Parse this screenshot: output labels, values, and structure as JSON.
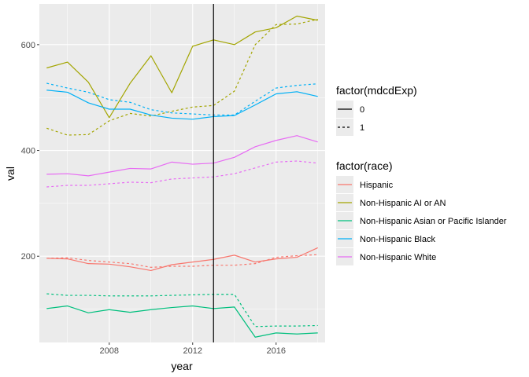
{
  "chart_data": {
    "type": "line",
    "xlabel": "year",
    "ylabel": "val",
    "xlim": [
      2004.65,
      2018.35
    ],
    "ylim": [
      37,
      677
    ],
    "x_ticks": [
      2008,
      2012,
      2016
    ],
    "y_ticks": [
      200,
      400,
      600
    ],
    "x_tick_labels": [
      "2008",
      "2012",
      "2016"
    ],
    "y_tick_labels": [
      "200",
      "400",
      "600"
    ],
    "vline_x": 2013,
    "background": "#ebebeb",
    "grid": true,
    "legend_placement": "right",
    "linetype_legend": {
      "title": "factor(mdcdExp)",
      "entries": [
        {
          "label": "0",
          "dash": "solid"
        },
        {
          "label": "1",
          "dash": "dotted"
        }
      ]
    },
    "color_legend": {
      "title": "factor(race)",
      "entries": [
        {
          "label": "Hispanic",
          "color": "#F8766D"
        },
        {
          "label": "Non-Hispanic AI or AN",
          "color": "#A3A500"
        },
        {
          "label": "Non-Hispanic Asian or Pacific Islander",
          "color": "#00BF7D"
        },
        {
          "label": "Non-Hispanic Black",
          "color": "#00B0F6"
        },
        {
          "label": "Non-Hispanic White",
          "color": "#E76BF3"
        }
      ]
    },
    "x": [
      2005,
      2006,
      2007,
      2008,
      2009,
      2010,
      2011,
      2012,
      2013,
      2014,
      2015,
      2016,
      2017,
      2018
    ],
    "series": [
      {
        "race": "Hispanic",
        "mdcdExp": "0",
        "color": "#F8766D",
        "dash": "solid",
        "values": [
          196,
          195,
          186,
          185,
          180,
          173,
          184,
          189,
          194,
          202,
          189,
          195,
          198,
          216
        ]
      },
      {
        "race": "Hispanic",
        "mdcdExp": "1",
        "color": "#F8766D",
        "dash": "dotted",
        "values": [
          196,
          197,
          192,
          189,
          186,
          179,
          181,
          181,
          183,
          183,
          186,
          198,
          201,
          203
        ]
      },
      {
        "race": "Non-Hispanic AI or AN",
        "mdcdExp": "0",
        "color": "#A3A500",
        "dash": "solid",
        "values": [
          556,
          567,
          529,
          462,
          527,
          579,
          509,
          597,
          609,
          600,
          624,
          632,
          654,
          646
        ]
      },
      {
        "race": "Non-Hispanic AI or AN",
        "mdcdExp": "1",
        "color": "#A3A500",
        "dash": "dotted",
        "values": [
          442,
          429,
          430,
          456,
          470,
          465,
          474,
          482,
          485,
          512,
          600,
          638,
          639,
          648
        ]
      },
      {
        "race": "Non-Hispanic Asian or Pacific Islander",
        "mdcdExp": "0",
        "color": "#00BF7D",
        "dash": "solid",
        "values": [
          101,
          106,
          93,
          99,
          94,
          99,
          103,
          106,
          101,
          104,
          47,
          55,
          53,
          55
        ]
      },
      {
        "race": "Non-Hispanic Asian or Pacific Islander",
        "mdcdExp": "1",
        "color": "#00BF7D",
        "dash": "dotted",
        "values": [
          129,
          126,
          126,
          125,
          125,
          125,
          126,
          127,
          128,
          128,
          67,
          68,
          68,
          69
        ]
      },
      {
        "race": "Non-Hispanic Black",
        "mdcdExp": "0",
        "color": "#00B0F6",
        "dash": "solid",
        "values": [
          514,
          510,
          490,
          478,
          478,
          467,
          461,
          459,
          464,
          466,
          486,
          507,
          511,
          502
        ]
      },
      {
        "race": "Non-Hispanic Black",
        "mdcdExp": "1",
        "color": "#00B0F6",
        "dash": "dotted",
        "values": [
          527,
          518,
          510,
          496,
          491,
          477,
          471,
          469,
          467,
          467,
          493,
          518,
          523,
          526
        ]
      },
      {
        "race": "Non-Hispanic White",
        "mdcdExp": "0",
        "color": "#E76BF3",
        "dash": "solid",
        "values": [
          355,
          356,
          352,
          359,
          366,
          365,
          378,
          374,
          376,
          387,
          407,
          419,
          428,
          416
        ]
      },
      {
        "race": "Non-Hispanic White",
        "mdcdExp": "1",
        "color": "#E76BF3",
        "dash": "dotted",
        "values": [
          331,
          334,
          334,
          337,
          340,
          339,
          346,
          348,
          350,
          356,
          367,
          378,
          380,
          376
        ]
      }
    ]
  }
}
